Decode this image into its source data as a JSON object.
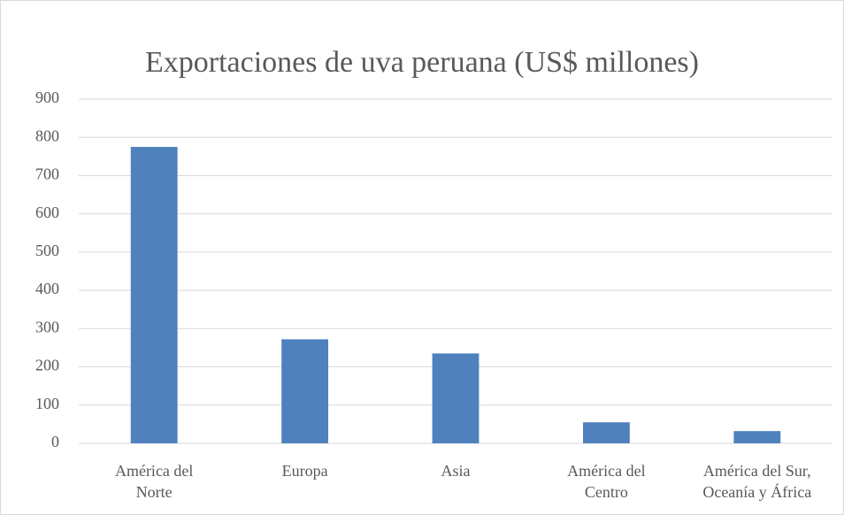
{
  "chart_data": {
    "type": "bar",
    "title": "Exportaciones de uva peruana (US$ millones)",
    "categories": [
      "América del\nNorte",
      "Europa",
      "Asia",
      "América del\nCentro",
      "América del Sur,\nOceanía y África"
    ],
    "values": [
      775,
      272,
      235,
      55,
      32
    ],
    "color": "#4f81bd",
    "ylim": [
      0,
      900
    ],
    "yticks": [
      0,
      100,
      200,
      300,
      400,
      500,
      600,
      700,
      800,
      900
    ],
    "grid": true
  }
}
